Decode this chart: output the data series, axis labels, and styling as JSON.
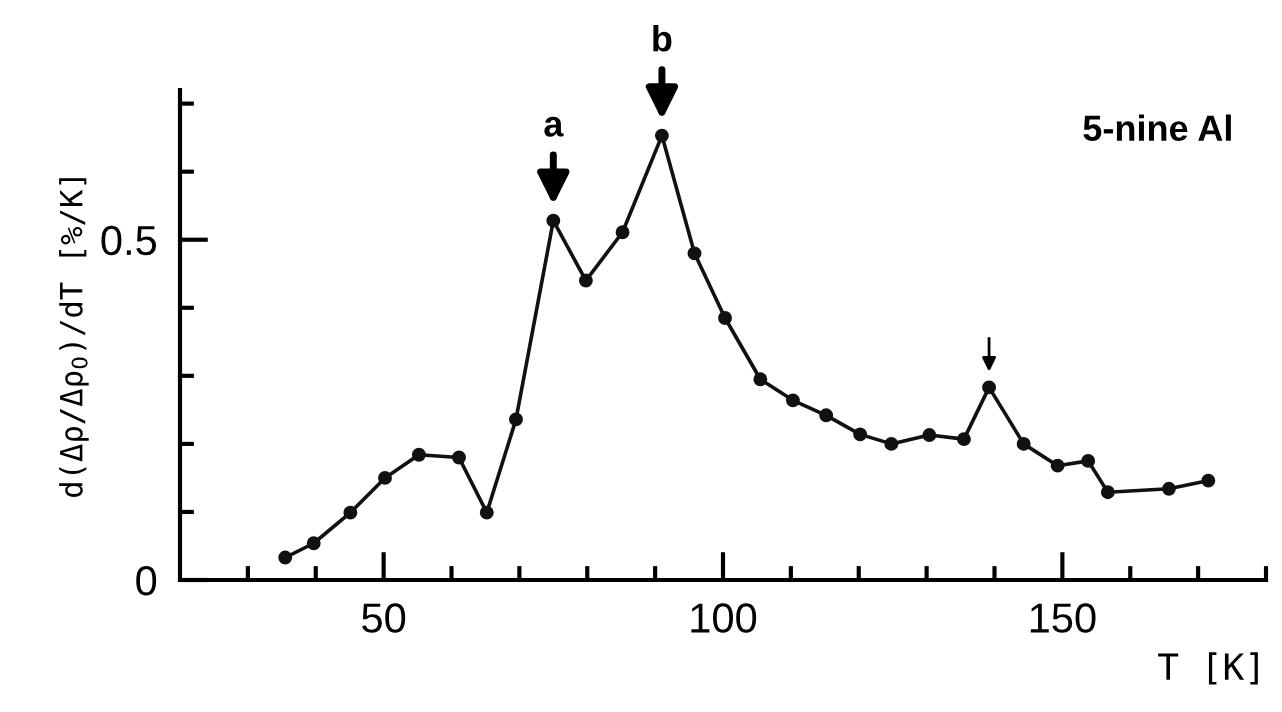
{
  "chart_data": {
    "type": "line",
    "xlabel": "T [K]",
    "ylabel": "d(Δρ/Δρ$_{0}$)/dT [%/K]",
    "x": [
      35.5,
      39.7,
      45.1,
      50.2,
      55.2,
      61.1,
      65.2,
      69.5,
      75,
      79.8,
      85.2,
      91,
      95.8,
      100.3,
      105.5,
      110.3,
      115.2,
      120.2,
      124.8,
      130.4,
      135.5,
      139.2,
      144.3,
      149.3,
      153.8,
      156.7,
      165.7,
      171.5
    ],
    "series": [
      {
        "color": "#111111",
        "values": [
          0.033,
          0.054,
          0.099,
          0.15,
          0.184,
          0.18,
          0.099,
          0.236,
          0.528,
          0.44,
          0.511,
          0.653,
          0.48,
          0.385,
          0.295,
          0.264,
          0.242,
          0.214,
          0.2,
          0.213,
          0.207,
          0.283,
          0.2,
          0.168,
          0.175,
          0.129,
          0.134,
          0.146
        ]
      }
    ],
    "xlim": [
      20,
      180
    ],
    "xticks": [
      {
        "value": 30,
        "label": null
      },
      {
        "value": 40,
        "label": null
      },
      50,
      {
        "value": 60,
        "label": null
      },
      {
        "value": 70,
        "label": null
      },
      {
        "value": 80,
        "label": null
      },
      {
        "value": 90,
        "label": null
      },
      100,
      {
        "value": 110,
        "label": null
      },
      {
        "value": 120,
        "label": null
      },
      {
        "value": 130,
        "label": null
      },
      {
        "value": 140,
        "label": null
      },
      150,
      {
        "value": 160,
        "label": null
      },
      {
        "value": 170,
        "label": null
      },
      {
        "value": 180,
        "label": null
      }
    ],
    "ylim": [
      0,
      0.72
    ],
    "yticks": [
      0,
      {
        "value": 0.1,
        "label": null
      },
      {
        "value": 0.2,
        "label": null
      },
      {
        "value": 0.3,
        "label": null
      },
      {
        "value": 0.4,
        "label": null
      },
      0.5,
      {
        "value": 0.6,
        "label": null
      },
      {
        "value": 0.7,
        "label": null
      }
    ],
    "marker": "circle",
    "line_style": "solid",
    "grid": false,
    "annotations": [
      {
        "text": "a",
        "x": 75,
        "y": 0.528
      },
      {
        "text": "b",
        "x": 91,
        "y": 0.653
      },
      "5-nine Al"
    ]
  }
}
